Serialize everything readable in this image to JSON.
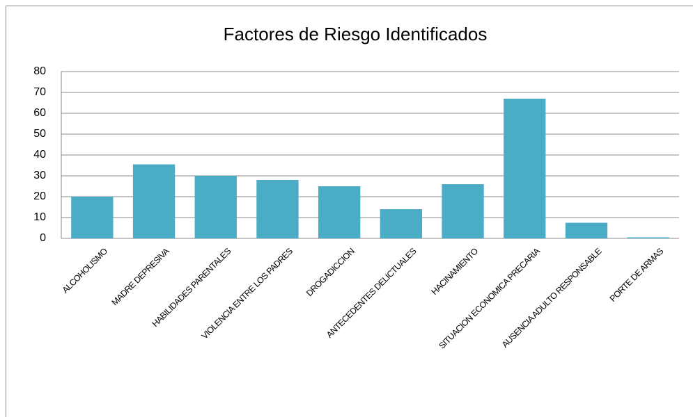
{
  "chart_data": {
    "type": "bar",
    "title": "Factores de Riesgo Identificados",
    "categories": [
      "ALCOHOLISMO",
      "MADRE  DEPRESIVA",
      "HABILIDADES PARENTALES",
      "VIOLENCIA ENTRE LOS PADRES",
      "DROGADICCION",
      "ANTECEDENTES DELICTUALES",
      "HACINAMIENTO",
      "SITUACION ECONOMICA PRECARIA",
      "AUSENCIA ADULTO RESPONSABLE",
      "PORTE DE ARMAS"
    ],
    "values": [
      20,
      35.5,
      30,
      28,
      25,
      14,
      26,
      67,
      7.5,
      0.5
    ],
    "color": "#4bacc6",
    "ylim": [
      0,
      80
    ],
    "yticks": [
      0,
      10,
      20,
      30,
      40,
      50,
      60,
      70,
      80
    ],
    "grid": true
  }
}
